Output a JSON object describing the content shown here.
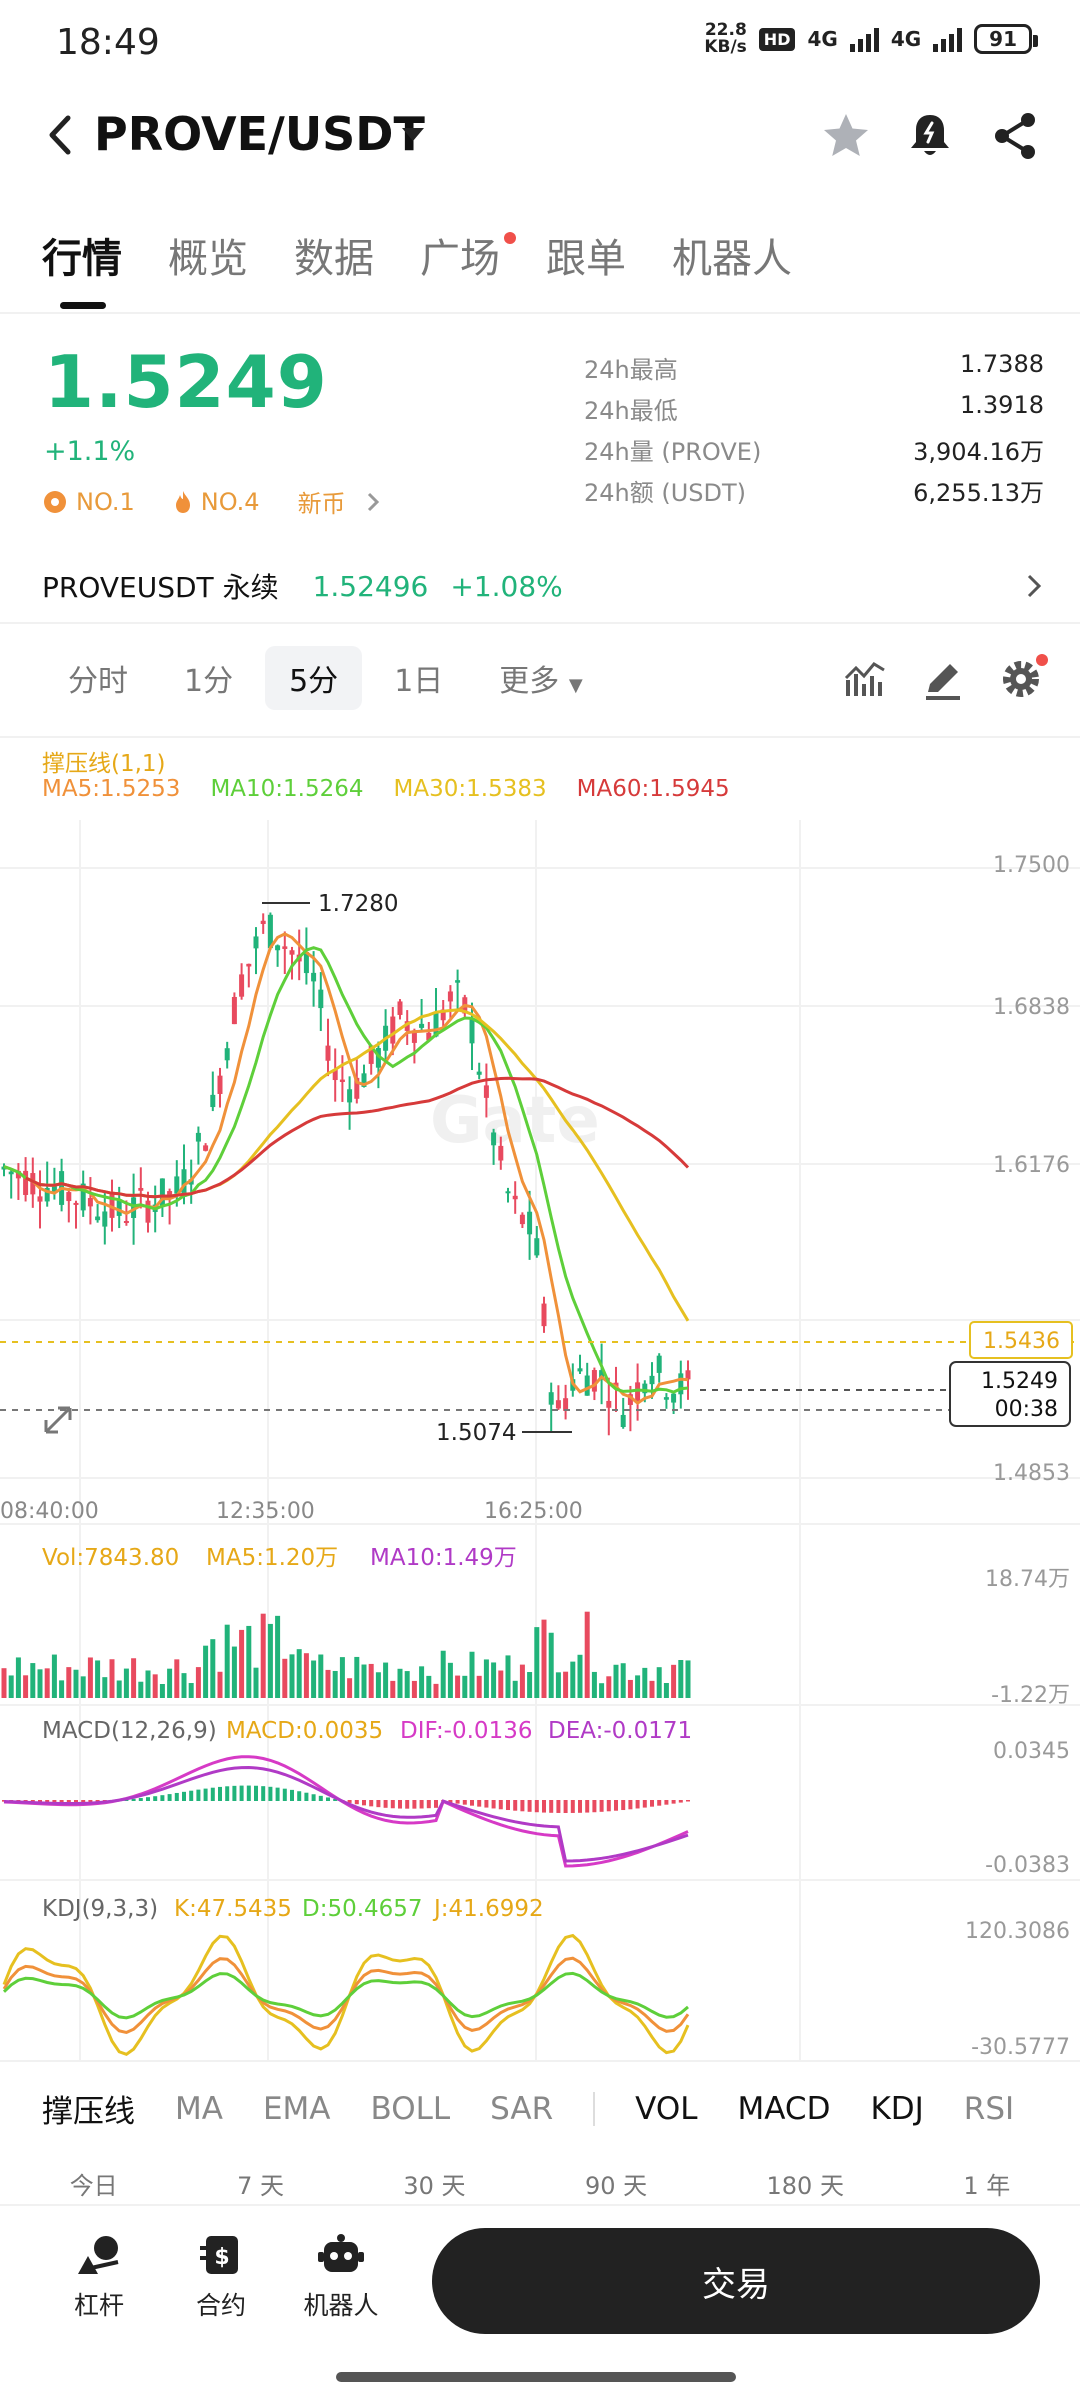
{
  "status_bar": {
    "time": "18:49",
    "speed_value": "22.8",
    "speed_unit": "KB/s",
    "hd": "HD",
    "net1": "4G",
    "net2": "4G",
    "battery": "91"
  },
  "header": {
    "pair": "PROVE/USDT"
  },
  "tabs": [
    {
      "label": "行情",
      "active": true
    },
    {
      "label": "概览"
    },
    {
      "label": "数据"
    },
    {
      "label": "广场",
      "dot": true
    },
    {
      "label": "跟单"
    },
    {
      "label": "机器人"
    }
  ],
  "ticker": {
    "last_price": "1.5249",
    "change": "+1.1%",
    "badges": [
      "NO.1",
      "NO.4",
      "新币"
    ],
    "stats": [
      {
        "k": "24h最高",
        "v": "1.7388"
      },
      {
        "k": "24h最低",
        "v": "1.3918"
      },
      {
        "k": "24h量 (PROVE)",
        "v": "3,904.16万"
      },
      {
        "k": "24h额 (USDT)",
        "v": "6,255.13万"
      }
    ]
  },
  "perp": {
    "name": "PROVEUSDT 永续",
    "price": "1.52496",
    "change": "+1.08%"
  },
  "intervals": {
    "items": [
      "分时",
      "1分",
      "5分",
      "1日",
      "更多"
    ],
    "active": "5分"
  },
  "main_chart": {
    "indicator_label": "撑压线(1,1)",
    "ma_legend": [
      {
        "label": "MA5:1.5253",
        "color": "#f0913a"
      },
      {
        "label": "MA10:1.5264",
        "color": "#5ecf3a"
      },
      {
        "label": "MA30:1.5383",
        "color": "#e6c020"
      },
      {
        "label": "MA60:1.5945",
        "color": "#d63a3a"
      }
    ],
    "y_ticks": [
      "1.7500",
      "1.6838",
      "1.6176",
      "1.4853"
    ],
    "x_ticks": [
      "08:40:00",
      "12:35:00",
      "16:25:00"
    ],
    "high_marker": "1.7280",
    "low_marker": "1.5074",
    "resistance": "1.5436",
    "price_tag": "1.5249",
    "countdown": "00:38",
    "watermark": "Gate"
  },
  "vol_panel": {
    "legend": [
      {
        "label": "Vol:7843.80",
        "color": "#e6a817"
      },
      {
        "label": "MA5:1.20万",
        "color": "#e6a817"
      },
      {
        "label": "MA10:1.49万",
        "color": "#b03ac6"
      }
    ],
    "y_top": "18.74万",
    "y_bottom": "-1.22万"
  },
  "macd_panel": {
    "legend": [
      {
        "label": "MACD(12,26,9)",
        "color": "#666666"
      },
      {
        "label": "MACD:0.0035",
        "color": "#e6a817"
      },
      {
        "label": "DIF:-0.0136",
        "color": "#d63ac6"
      },
      {
        "label": "DEA:-0.0171",
        "color": "#b03ac6"
      }
    ],
    "y_top": "0.0345",
    "y_bottom": "-0.0383"
  },
  "kdj_panel": {
    "legend": [
      {
        "label": "KDJ(9,3,3)",
        "color": "#666666"
      },
      {
        "label": "K:47.5435",
        "color": "#e6a817"
      },
      {
        "label": "D:50.4657",
        "color": "#5ecf3a"
      },
      {
        "label": "J:41.6992",
        "color": "#e6a817"
      }
    ],
    "y_top": "120.3086",
    "y_bottom": "-30.5777"
  },
  "indicator_tabs": {
    "main": [
      "撑压线",
      "MA",
      "EMA",
      "BOLL",
      "SAR"
    ],
    "sub": [
      "VOL",
      "MACD",
      "KDJ",
      "RSI"
    ]
  },
  "ranges": [
    "今日",
    "7 天",
    "30 天",
    "90 天",
    "180 天",
    "1 年"
  ],
  "bottom_nav": {
    "items": [
      "杠杆",
      "合约",
      "机器人"
    ],
    "trade": "交易"
  },
  "colors": {
    "up": "#21b37a",
    "down": "#e84a5f",
    "accent_orange": "#f0913a"
  }
}
